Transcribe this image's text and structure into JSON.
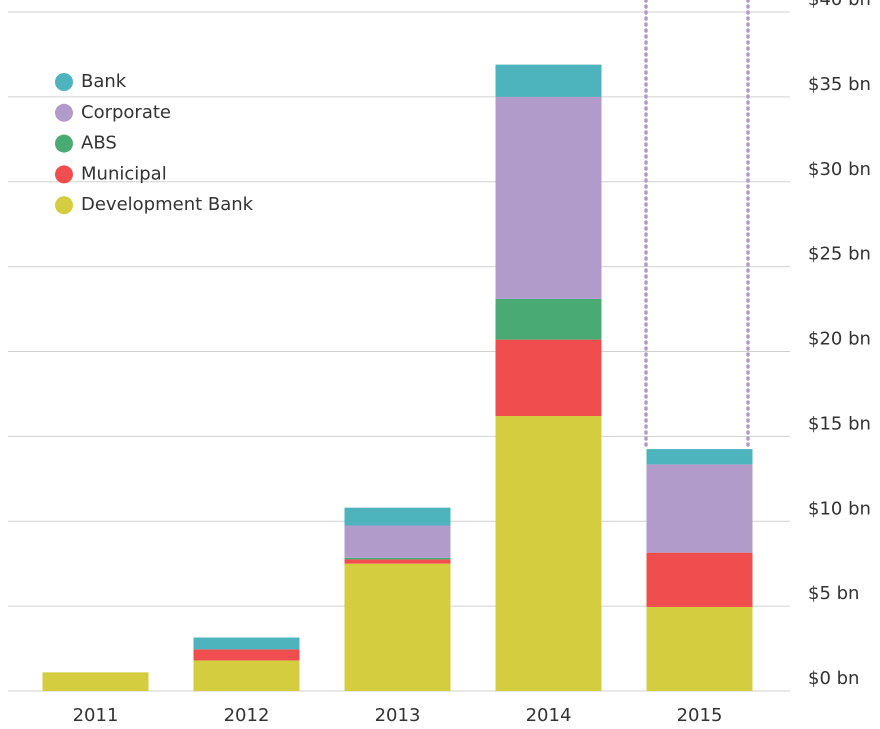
{
  "chart_data": {
    "type": "stacked_bar",
    "categories": [
      "2011",
      "2012",
      "2013",
      "2014",
      "2015"
    ],
    "series": [
      {
        "name": "Development Bank",
        "color": "#d4cd3f",
        "values": [
          1.1,
          1.8,
          7.5,
          16.2,
          4.95
        ]
      },
      {
        "name": "Municipal",
        "color": "#f04e4e",
        "values": [
          0,
          0.65,
          0.25,
          4.5,
          3.2
        ]
      },
      {
        "name": "ABS",
        "color": "#4aaa74",
        "values": [
          0,
          0,
          0.1,
          2.4,
          0
        ]
      },
      {
        "name": "Corporate",
        "color": "#b09bcb",
        "values": [
          0,
          0,
          1.9,
          11.9,
          5.2
        ]
      },
      {
        "name": "Bank",
        "color": "#4db3bd",
        "values": [
          0,
          0.7,
          1.05,
          1.9,
          0.9
        ]
      }
    ],
    "ylim": [
      0,
      40
    ],
    "yticks": [
      {
        "value": 0,
        "label": "$0 bn"
      },
      {
        "value": 5,
        "label": "$5 bn"
      },
      {
        "value": 10,
        "label": "$10 bn"
      },
      {
        "value": 15,
        "label": "$15 bn"
      },
      {
        "value": 20,
        "label": "$20 bn"
      },
      {
        "value": 25,
        "label": "$25 bn"
      },
      {
        "value": 30,
        "label": "$30 bn"
      },
      {
        "value": 35,
        "label": "$35 bn"
      },
      {
        "value": 40,
        "label": "$40 bn"
      }
    ],
    "grid": true,
    "legend": "top-left"
  }
}
